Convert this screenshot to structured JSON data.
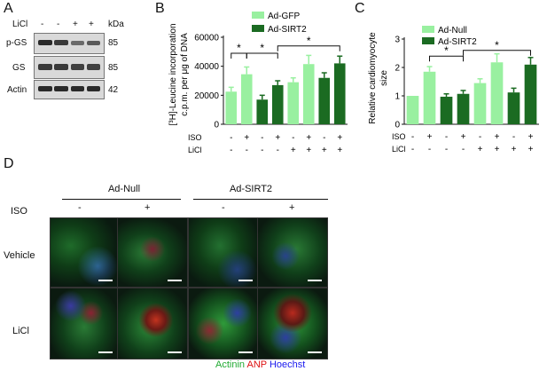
{
  "panelA": {
    "label": "A",
    "licl_label": "LiCl",
    "kda_label": "kDa",
    "licl_signs": [
      "-",
      "-",
      "+",
      "+"
    ],
    "rows": [
      {
        "name": "p-GS",
        "kda": "85"
      },
      {
        "name": "GS",
        "kda": "85"
      },
      {
        "name": "Actin",
        "kda": "42"
      }
    ]
  },
  "panelB": {
    "label": "B",
    "ylabel_line1": "[³H]-Leucine incorporation",
    "ylabel_line2": "c.p.m. per μg of DNA",
    "legend": [
      "Ad-GFP",
      "Ad-SIRT2"
    ],
    "iso_label": "ISO",
    "licl_label": "LiCl",
    "iso_signs": [
      "-",
      "+",
      "-",
      "+",
      "-",
      "+",
      "-",
      "+"
    ],
    "licl_signs": [
      "-",
      "-",
      "-",
      "-",
      "+",
      "+",
      "+",
      "+"
    ],
    "significance": [
      "*",
      "*",
      "*"
    ],
    "colors": {
      "light": "#99f0a0",
      "dark": "#1b6b22"
    }
  },
  "panelC": {
    "label": "C",
    "ylabel_line1": "Relative cardiomyocyte",
    "ylabel_line2": "size",
    "legend": [
      "Ad-Null",
      "Ad-SIRT2"
    ],
    "iso_label": "ISO",
    "licl_label": "LiCl",
    "iso_signs": [
      "-",
      "+",
      "-",
      "+",
      "-",
      "+",
      "-",
      "+"
    ],
    "licl_signs": [
      "-",
      "-",
      "-",
      "-",
      "+",
      "+",
      "+",
      "+"
    ],
    "significance": [
      "*",
      "*"
    ],
    "colors": {
      "light": "#99f0a0",
      "dark": "#1b6b22"
    }
  },
  "panelD": {
    "label": "D",
    "group1": "Ad-Null",
    "group2": "Ad-SIRT2",
    "iso_label": "ISO",
    "iso_signs": [
      "-",
      "+",
      "-",
      "+"
    ],
    "rows": [
      "Vehicle",
      "LiCl"
    ],
    "stain_actinin": "Actinin",
    "stain_anp": "ANP",
    "stain_hoechst": "Hoechst",
    "stain_colors": {
      "actinin": "#22aa33",
      "anp": "#dd1111",
      "hoechst": "#1a1aee"
    }
  },
  "chart_data": [
    {
      "type": "bar",
      "panel": "B",
      "categories": [
        "1",
        "2",
        "3",
        "4",
        "5",
        "6",
        "7",
        "8"
      ],
      "values": [
        22500,
        34500,
        17000,
        27000,
        29000,
        41500,
        32000,
        42000
      ],
      "errors": [
        3000,
        5000,
        3000,
        3000,
        3000,
        6000,
        3500,
        5000
      ],
      "bar_colors": [
        "light",
        "light",
        "dark",
        "dark",
        "light",
        "light",
        "dark",
        "dark"
      ],
      "ylim": [
        0,
        60000
      ],
      "yticks": [
        "0",
        "20000",
        "40000",
        "60000"
      ],
      "ytick_values": [
        0,
        20000,
        40000,
        60000
      ],
      "legend": [
        "Ad-GFP",
        "Ad-SIRT2"
      ]
    },
    {
      "type": "bar",
      "panel": "C",
      "categories": [
        "1",
        "2",
        "3",
        "4",
        "5",
        "6",
        "7",
        "8"
      ],
      "values": [
        1.0,
        1.85,
        0.97,
        1.07,
        1.45,
        2.18,
        1.12,
        2.1
      ],
      "errors": [
        0,
        0.18,
        0.1,
        0.12,
        0.15,
        0.3,
        0.15,
        0.25
      ],
      "bar_colors": [
        "light",
        "light",
        "dark",
        "dark",
        "light",
        "light",
        "dark",
        "dark"
      ],
      "ylim": [
        0,
        3
      ],
      "yticks": [
        "0",
        "1",
        "2",
        "3"
      ],
      "ytick_values": [
        0,
        1,
        2,
        3
      ],
      "legend": [
        "Ad-Null",
        "Ad-SIRT2"
      ]
    }
  ]
}
